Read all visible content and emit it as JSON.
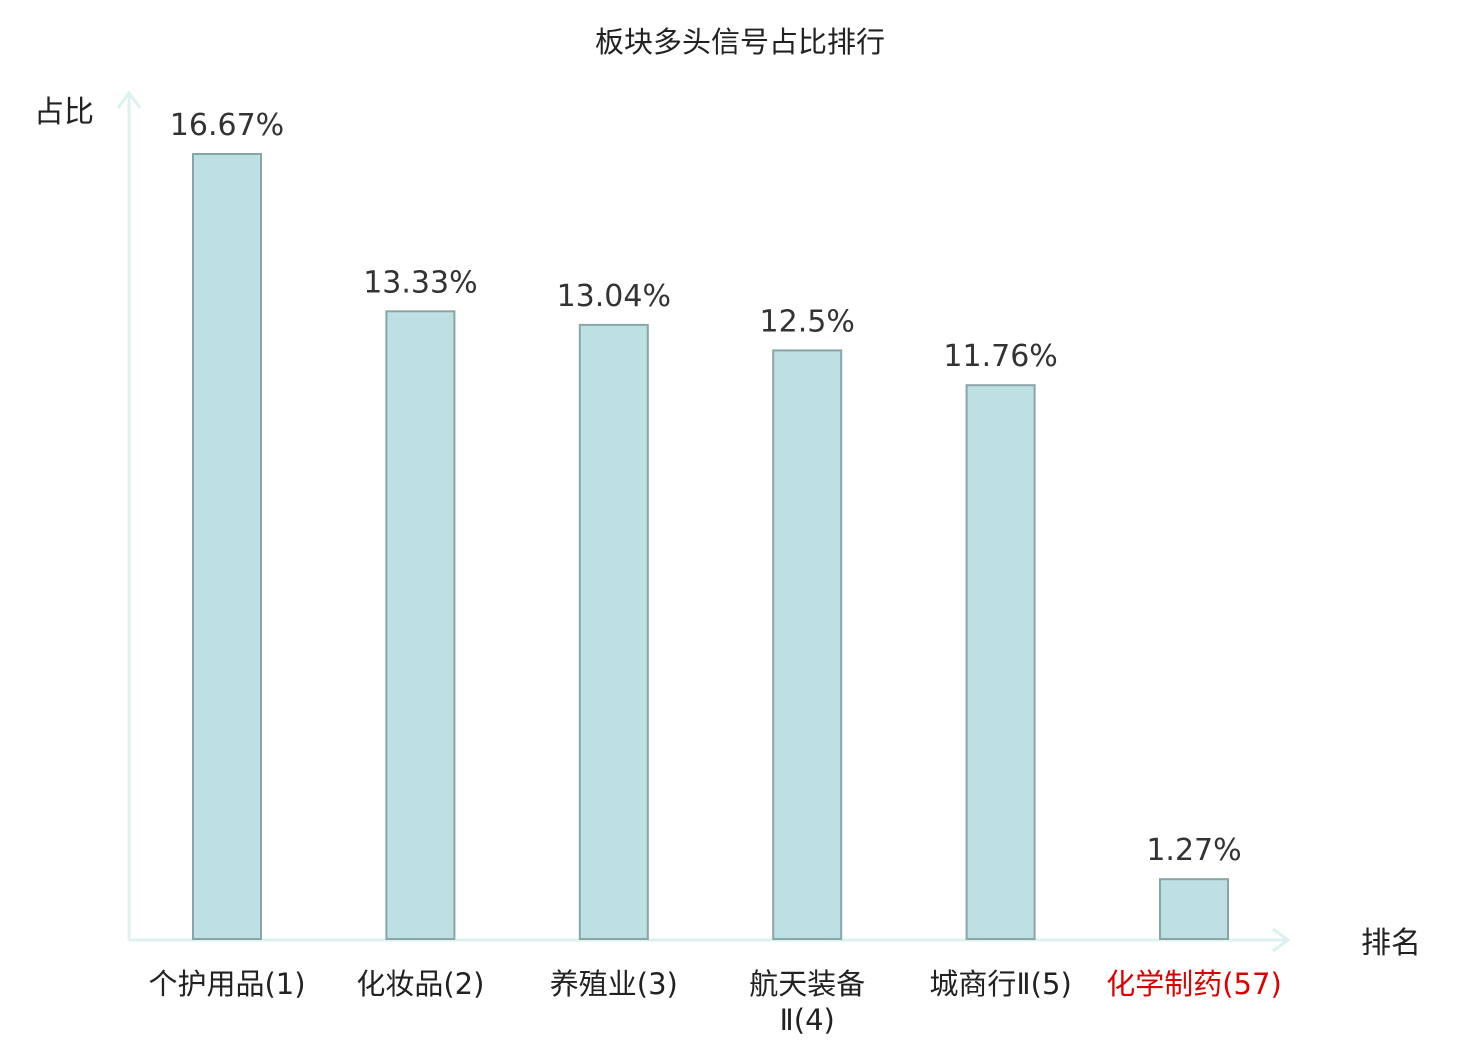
{
  "chart_data": {
    "type": "bar",
    "title": "板块多头信号占比排行",
    "ylabel": "占比",
    "xlabel": "排名",
    "categories": [
      [
        "个护用品(1)"
      ],
      [
        "化妆品(2)"
      ],
      [
        "养殖业(3)"
      ],
      [
        "航天装备",
        "Ⅱ(4)"
      ],
      [
        "城商行Ⅱ(5)"
      ],
      [
        "化学制药(57)"
      ]
    ],
    "values": [
      16.67,
      13.33,
      13.04,
      12.5,
      11.76,
      1.27
    ],
    "value_labels": [
      "16.67%",
      "13.33%",
      "13.04%",
      "12.5%",
      "11.76%",
      "1.27%"
    ],
    "highlight_index": 5,
    "ylim": [
      0,
      16.67
    ],
    "grid": false,
    "colors": {
      "bar_fill": "#bde0e3",
      "bar_stroke": "#8aa5a8",
      "axis": "#ddf1ee",
      "text": "#222222",
      "highlight_text": "#dd0000"
    }
  }
}
